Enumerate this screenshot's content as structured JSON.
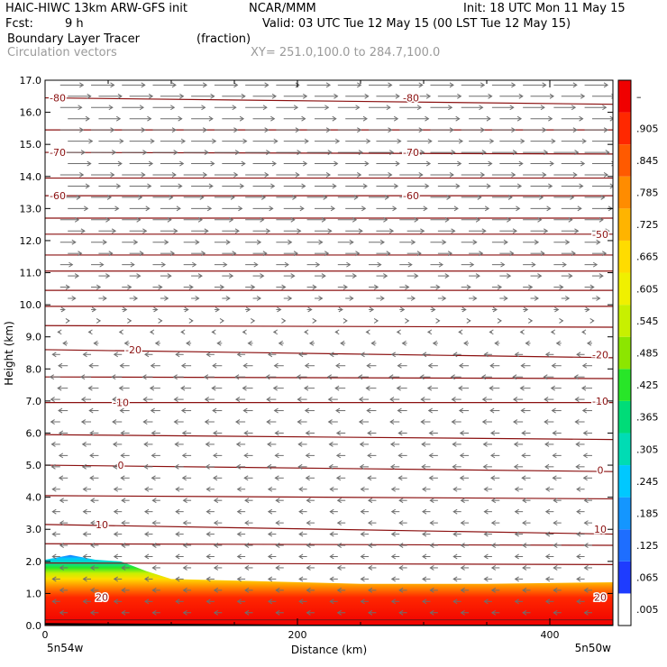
{
  "header": {
    "title": "HAIC-HIWC 13km ARW-GFS init",
    "org": "NCAR/MMM",
    "init": "Init: 18 UTC Mon 11 May 15",
    "fcst_label": "Fcst:",
    "fcst_value": "9 h",
    "valid": "Valid: 03 UTC Tue 12 May 15 (00 LST Tue 12 May 15)",
    "field": "Boundary Layer Tracer",
    "field_units": "(fraction)",
    "vectors": "Circulation vectors",
    "xy_range": "XY= 251.0,100.0 to 284.7,100.0"
  },
  "chart_data": {
    "type": "heatmap",
    "ylabel": "Height (km)",
    "xlabel": "Distance (km)",
    "ylim": [
      0,
      17
    ],
    "xlim": [
      0,
      450
    ],
    "y_ticks": [
      "0.0",
      "1.0",
      "2.0",
      "3.0",
      "4.0",
      "5.0",
      "6.0",
      "7.0",
      "8.0",
      "9.0",
      "10.0",
      "11.0",
      "12.0",
      "13.0",
      "14.0",
      "15.0",
      "16.0",
      "17.0"
    ],
    "x_ticks": [
      {
        "v": 0,
        "label": "0"
      },
      {
        "v": 200,
        "label": "200"
      },
      {
        "v": 400,
        "label": "400"
      }
    ],
    "x_left_label": "5n54w",
    "x_right_label": "5n50w",
    "colorbar": {
      "labels": [
        ".005",
        ".065",
        ".125",
        ".185",
        ".245",
        ".305",
        ".365",
        ".425",
        ".485",
        ".545",
        ".605",
        ".665",
        ".725",
        ".785",
        ".845",
        ".905",
        "–"
      ],
      "colors": [
        "#ffffff",
        "#1e3cff",
        "#1e6eff",
        "#1496ff",
        "#00c8ff",
        "#00dcb4",
        "#00dc78",
        "#28e628",
        "#8ce600",
        "#c8f000",
        "#f0f000",
        "#ffdc00",
        "#ffb400",
        "#ff8c00",
        "#ff5a00",
        "#ff2800",
        "#f00000"
      ]
    },
    "tracer_top_km": [
      [
        0,
        2.05
      ],
      [
        20,
        2.2
      ],
      [
        40,
        2.05
      ],
      [
        60,
        2.0
      ],
      [
        70,
        1.85
      ],
      [
        80,
        1.7
      ],
      [
        100,
        1.45
      ],
      [
        150,
        1.4
      ],
      [
        250,
        1.3
      ],
      [
        350,
        1.3
      ],
      [
        450,
        1.35
      ]
    ],
    "contour_labels": [
      {
        "text": "-80",
        "x": 10,
        "y": 16.45
      },
      {
        "text": "-80",
        "x": 290,
        "y": 16.45
      },
      {
        "text": "-70",
        "x": 10,
        "y": 14.75
      },
      {
        "text": "-70",
        "x": 290,
        "y": 14.75
      },
      {
        "text": "-60",
        "x": 10,
        "y": 13.4
      },
      {
        "text": "-60",
        "x": 290,
        "y": 13.4
      },
      {
        "text": "-50",
        "x": 440,
        "y": 12.2
      },
      {
        "text": "-20",
        "x": 70,
        "y": 8.6
      },
      {
        "text": "-20",
        "x": 440,
        "y": 8.45
      },
      {
        "text": "-10",
        "x": 60,
        "y": 6.95
      },
      {
        "text": "-10",
        "x": 440,
        "y": 7.0
      },
      {
        "text": "0",
        "x": 60,
        "y": 5.0
      },
      {
        "text": "0",
        "x": 440,
        "y": 4.85
      },
      {
        "text": "10",
        "x": 45,
        "y": 3.15
      },
      {
        "text": "10",
        "x": 440,
        "y": 3.0
      },
      {
        "text": "20",
        "x": 45,
        "y": 0.88
      },
      {
        "text": "20",
        "x": 440,
        "y": 0.88
      }
    ],
    "isotherms_km": [
      [
        0.18,
        0.18
      ],
      [
        1.95,
        1.9
      ],
      [
        2.55,
        2.5
      ],
      [
        3.15,
        2.85
      ],
      [
        4.05,
        3.95
      ],
      [
        5.0,
        4.8
      ],
      [
        5.95,
        5.8
      ],
      [
        6.95,
        6.95
      ],
      [
        7.75,
        7.7
      ],
      [
        8.6,
        8.35
      ],
      [
        9.35,
        9.3
      ],
      [
        9.95,
        9.95
      ],
      [
        10.45,
        10.45
      ],
      [
        11.05,
        11.05
      ],
      [
        11.55,
        11.55
      ],
      [
        12.2,
        12.2
      ],
      [
        12.7,
        12.7
      ],
      [
        13.4,
        13.4
      ],
      [
        13.95,
        13.95
      ],
      [
        14.75,
        14.7
      ],
      [
        15.45,
        15.45
      ],
      [
        16.45,
        16.25
      ]
    ],
    "vector_rows": [
      {
        "y": 16.85,
        "u": 30
      },
      {
        "y": 16.5,
        "u": 30
      },
      {
        "y": 16.15,
        "u": 28
      },
      {
        "y": 15.8,
        "u": 28
      },
      {
        "y": 15.45,
        "u": 30
      },
      {
        "y": 15.1,
        "u": 32
      },
      {
        "y": 14.75,
        "u": 32
      },
      {
        "y": 14.4,
        "u": 30
      },
      {
        "y": 14.05,
        "u": 30
      },
      {
        "y": 13.7,
        "u": 28
      },
      {
        "y": 13.35,
        "u": 26
      },
      {
        "y": 13.0,
        "u": 26
      },
      {
        "y": 12.65,
        "u": 24
      },
      {
        "y": 12.3,
        "u": 22
      },
      {
        "y": 11.95,
        "u": 20
      },
      {
        "y": 11.6,
        "u": 18
      },
      {
        "y": 11.25,
        "u": 16
      },
      {
        "y": 10.9,
        "u": 14
      },
      {
        "y": 10.55,
        "u": 12
      },
      {
        "y": 10.2,
        "u": 10
      },
      {
        "y": 9.85,
        "u": 6
      },
      {
        "y": 9.5,
        "u": 2
      },
      {
        "y": 9.15,
        "u": -3
      },
      {
        "y": 8.8,
        "u": -6
      },
      {
        "y": 8.45,
        "u": -10
      },
      {
        "y": 8.1,
        "u": -12
      },
      {
        "y": 7.75,
        "u": -13
      },
      {
        "y": 7.4,
        "u": -13
      },
      {
        "y": 7.05,
        "u": -12
      },
      {
        "y": 6.7,
        "u": -12
      },
      {
        "y": 6.35,
        "u": -12
      },
      {
        "y": 6.0,
        "u": -11
      },
      {
        "y": 5.65,
        "u": -11
      },
      {
        "y": 5.3,
        "u": -11
      },
      {
        "y": 4.95,
        "u": -11
      },
      {
        "y": 4.6,
        "u": -11
      },
      {
        "y": 4.25,
        "u": -10
      },
      {
        "y": 3.9,
        "u": -10
      },
      {
        "y": 3.55,
        "u": -10
      },
      {
        "y": 3.2,
        "u": -10
      },
      {
        "y": 2.85,
        "u": -10
      },
      {
        "y": 2.5,
        "u": -10
      },
      {
        "y": 2.15,
        "u": -10
      },
      {
        "y": 1.8,
        "u": -10
      },
      {
        "y": 1.45,
        "u": -10
      },
      {
        "y": 1.1,
        "u": -10
      },
      {
        "y": 0.75,
        "u": -10
      },
      {
        "y": 0.4,
        "u": -10
      }
    ],
    "grid": false
  },
  "colors": {
    "contour": "#8b1010",
    "vector": "#6e6e6e"
  }
}
